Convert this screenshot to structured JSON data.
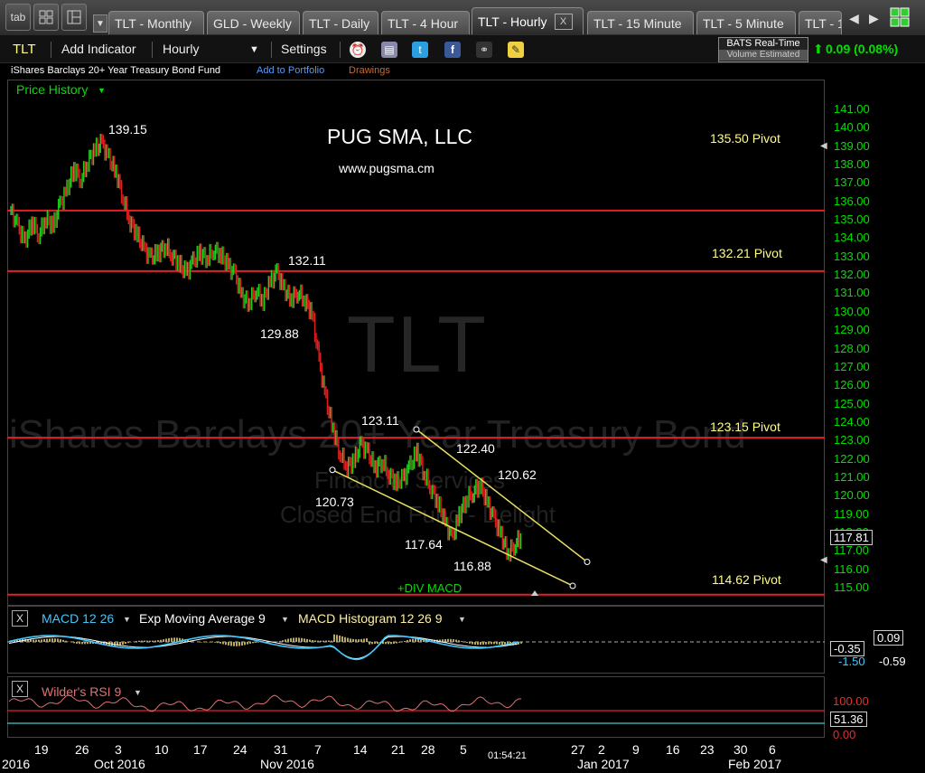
{
  "tabstrip": {
    "tab_button": "tab",
    "tabs": [
      {
        "label": "TLT - Monthly"
      },
      {
        "label": "GLD - Weekly"
      },
      {
        "label": "TLT - Daily"
      },
      {
        "label": "TLT - 4 Hour"
      },
      {
        "label": "TLT - Hourly",
        "active": true
      },
      {
        "label": "TLT - 15 Minute"
      },
      {
        "label": "TLT - 5 Minute"
      },
      {
        "label": "TLT - 1"
      }
    ],
    "close_label": "X"
  },
  "toolbar": {
    "symbol": "TLT",
    "add_indicator": "Add Indicator",
    "interval": "Hourly",
    "settings": "Settings",
    "feed_line1": "BATS Real-Time",
    "feed_line2": "Volume Estimated",
    "change": "0.09 (0.08%)"
  },
  "subbar": {
    "fund_name": "iShares Barclays 20+ Year Treasury Bond Fund",
    "add_portfolio": "Add to Portfolio",
    "drawings": "Drawings"
  },
  "price_panel": {
    "label": "Price History",
    "watermark_symbol": "TLT",
    "watermark_name": "iShares Barclays 20+ Year Treasury Bond",
    "watermark_sector": "Financial Services",
    "watermark_type": "Closed End Fund - Delight",
    "title": "PUG SMA, LLC",
    "website": "www.pugsma.cm",
    "current_price": "117.81",
    "div_label": "+DIV MACD"
  },
  "macd_panel": {
    "label_macd": "MACD 12 26",
    "label_ema": "Exp Moving Average 9",
    "label_hist": "MACD Histogram 12 26 9",
    "value_1": "0.09",
    "value_2": "-0.35",
    "value_3": "-1.50",
    "value_4": "-0.59"
  },
  "rsi_panel": {
    "label": "Wilder's RSI 9",
    "value": "51.36",
    "top": "100.00",
    "bottom": "0.00"
  },
  "time_axis": {
    "clock": "01:54:21"
  },
  "colors": {
    "price_axis": "#00e000",
    "pivot_line": "#e0202a",
    "trend_line": "#e8e060",
    "up_bar": "#20d020",
    "down_bar": "#e02020",
    "macd_line": "#40c8ff",
    "ema_line": "#ffffff",
    "histogram": "#b8a860",
    "rsi_line": "#e07070"
  },
  "chart_data": {
    "type": "candlestick",
    "y_axis_ticks": [
      "141.00",
      "140.00",
      "139.00",
      "138.00",
      "137.00",
      "136.00",
      "135.00",
      "134.00",
      "133.00",
      "132.00",
      "131.00",
      "130.00",
      "129.00",
      "128.00",
      "127.00",
      "126.00",
      "125.00",
      "124.00",
      "123.00",
      "122.00",
      "121.00",
      "120.00",
      "119.00",
      "118.00",
      "117.00",
      "116.00",
      "115.00"
    ],
    "ylim": [
      115,
      141
    ],
    "x_ticks": [
      "19",
      "26",
      "3",
      "10",
      "17",
      "24",
      "31",
      "7",
      "14",
      "21",
      "28",
      "5",
      "27",
      "2",
      "9",
      "16",
      "23",
      "30",
      "6"
    ],
    "x_months": [
      "2016",
      "Oct 2016",
      "Nov 2016",
      "Jan 2017",
      "Feb 2017"
    ],
    "pivots": [
      {
        "value": 135.5,
        "label": "135.50 Pivot"
      },
      {
        "value": 132.21,
        "label": "132.21 Pivot"
      },
      {
        "value": 123.15,
        "label": "123.15 Pivot"
      },
      {
        "value": 114.62,
        "label": "114.62 Pivot"
      }
    ],
    "annotations": [
      {
        "label": "139.15",
        "value": 139.15
      },
      {
        "label": "132.11",
        "value": 132.11
      },
      {
        "label": "129.88",
        "value": 129.88
      },
      {
        "label": "123.11",
        "value": 123.11
      },
      {
        "label": "122.40",
        "value": 122.4
      },
      {
        "label": "120.62",
        "value": 120.62
      },
      {
        "label": "120.73",
        "value": 120.73
      },
      {
        "label": "117.64",
        "value": 117.64
      },
      {
        "label": "116.88",
        "value": 116.88
      }
    ],
    "price_path": [
      135.5,
      134.6,
      133.8,
      134.9,
      134.2,
      135.1,
      134.6,
      135.8,
      136.6,
      137.8,
      137.2,
      138.2,
      138.8,
      139.15,
      138.3,
      137.6,
      136.2,
      134.9,
      134.2,
      133.4,
      132.9,
      133.2,
      133.6,
      133.1,
      132.6,
      132.1,
      132.7,
      133.2,
      132.9,
      133.4,
      133.1,
      132.5,
      132.0,
      130.8,
      130.5,
      131.2,
      130.6,
      131.6,
      132.11,
      131.2,
      130.7,
      131.1,
      130.6,
      129.88,
      127.3,
      125.2,
      123.6,
      122.3,
      121.6,
      121.9,
      122.8,
      122.3,
      121.5,
      121.9,
      121.2,
      120.7,
      120.9,
      121.6,
      122.4,
      121.2,
      120.4,
      119.6,
      118.5,
      117.64,
      118.9,
      119.8,
      120.2,
      120.62,
      119.6,
      118.7,
      117.8,
      116.88,
      117.4,
      117.81
    ],
    "rsi_ylim": [
      0,
      100
    ],
    "rsi_value": 51.36
  }
}
